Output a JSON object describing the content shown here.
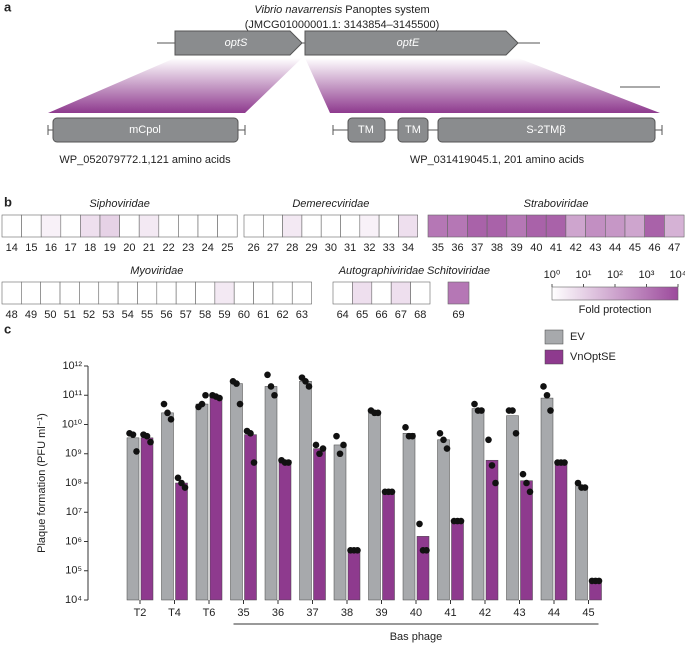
{
  "panel_a": {
    "panel_label": "a",
    "title_species": "Vibrio navarrensis",
    "title_rest": "Panoptes system",
    "accession": "(JMCG01000001.1: 3143854–3145500)",
    "genes": [
      "optS",
      "optE"
    ],
    "left_domains": [
      "mCpol"
    ],
    "right_domains": [
      "TM",
      "TM",
      "S-2TMβ"
    ],
    "left_caption": "WP_052079772.1,121 amino acids",
    "right_caption": "WP_031419045.1, 201 amino acids"
  },
  "chart_data": [
    {
      "type": "heatmap",
      "panel_label": "b",
      "groups": [
        {
          "name": "Siphoviridae",
          "categories": [
            "14",
            "15",
            "16",
            "17",
            "18",
            "19",
            "20",
            "21",
            "22",
            "23",
            "24",
            "25"
          ],
          "values": [
            1,
            1,
            2,
            1,
            5,
            10,
            1,
            3,
            1,
            1,
            1,
            1
          ]
        },
        {
          "name": "Demerecviridae",
          "categories": [
            "26",
            "27",
            "28",
            "29",
            "30",
            "31",
            "32",
            "33",
            "34"
          ],
          "values": [
            1,
            1,
            3,
            1,
            1,
            1,
            2,
            1,
            5
          ]
        },
        {
          "name": "Straboviridae",
          "categories": [
            "35",
            "36",
            "37",
            "38",
            "39",
            "40",
            "41",
            "42",
            "43",
            "44",
            "45",
            "46",
            "47"
          ],
          "values": [
            1000,
            1000,
            3000,
            3000,
            1000,
            3000,
            3000,
            100,
            300,
            200,
            100,
            3000,
            50
          ]
        },
        {
          "name": "Myoviridae",
          "categories": [
            "48",
            "49",
            "50",
            "51",
            "52",
            "53",
            "54",
            "55",
            "56",
            "57",
            "58",
            "59",
            "60",
            "61",
            "62",
            "63"
          ],
          "values": [
            1,
            1,
            1,
            1,
            1,
            1,
            1,
            1,
            1,
            1,
            1,
            3,
            1,
            1,
            1,
            1
          ]
        },
        {
          "name": "Autographiviridae",
          "categories": [
            "64",
            "65",
            "66",
            "67",
            "68"
          ],
          "values": [
            1,
            5,
            1,
            5,
            1
          ]
        },
        {
          "name": "Schitoviridae",
          "categories": [
            "69"
          ],
          "values": [
            1000
          ]
        }
      ],
      "colorbar": {
        "label": "Fold protection",
        "log": true,
        "lim": [
          1,
          10000
        ],
        "color": "#9c4a9c",
        "ticks": [
          {
            "value": 1,
            "label": "10⁰"
          },
          {
            "value": 10,
            "label": "10¹"
          },
          {
            "value": 100,
            "label": "10²"
          },
          {
            "value": 1000,
            "label": "10³"
          },
          {
            "value": 10000,
            "label": "10⁴"
          }
        ]
      }
    },
    {
      "type": "bar",
      "panel_label": "c",
      "ylabel": "Plaque formation (PFU ml⁻¹)",
      "log_y": true,
      "ylim": [
        10000.0,
        1000000000000.0
      ],
      "yticks": [
        {
          "value": 10000.0,
          "label": "10⁴"
        },
        {
          "value": 100000.0,
          "label": "10⁵"
        },
        {
          "value": 1000000.0,
          "label": "10⁶"
        },
        {
          "value": 10000000.0,
          "label": "10⁷"
        },
        {
          "value": 100000000.0,
          "label": "10⁸"
        },
        {
          "value": 1000000000.0,
          "label": "10⁹"
        },
        {
          "value": 10000000000.0,
          "label": "10¹⁰"
        },
        {
          "value": 100000000000.0,
          "label": "10¹¹"
        },
        {
          "value": 1000000000000.0,
          "label": "10¹²"
        }
      ],
      "categories": [
        "T2",
        "T4",
        "T6",
        "35",
        "36",
        "37",
        "38",
        "39",
        "40",
        "41",
        "42",
        "43",
        "44",
        "45"
      ],
      "x_group_label": "Bas phage",
      "series": [
        {
          "name": "EV",
          "color": "#a7a9ac",
          "values": [
            3500000000.0,
            25000000000.0,
            50000000000.0,
            250000000000.0,
            200000000000.0,
            300000000000.0,
            2000000000.0,
            25000000000.0,
            5000000000.0,
            3000000000.0,
            35000000000.0,
            20000000000.0,
            80000000000.0,
            80000000.0
          ],
          "points": [
            [
              5000000000.0,
              4500000000.0,
              1200000000.0
            ],
            [
              50000000000.0,
              25000000000.0,
              15000000000.0
            ],
            [
              40000000000.0,
              50000000000.0,
              100000000000.0
            ],
            [
              300000000000.0,
              250000000000.0,
              50000000000.0
            ],
            [
              500000000000.0,
              200000000000.0,
              100000000000.0
            ],
            [
              400000000000.0,
              300000000000.0,
              200000000000.0
            ],
            [
              4000000000.0,
              1000000000.0,
              2000000000.0
            ],
            [
              30000000000.0,
              25000000000.0,
              25000000000.0
            ],
            [
              8000000000.0,
              4000000000.0,
              4000000000.0
            ],
            [
              5000000000.0,
              3000000000.0,
              1500000000.0
            ],
            [
              50000000000.0,
              30000000000.0,
              30000000000.0
            ],
            [
              30000000000.0,
              30000000000.0,
              5000000000.0
            ],
            [
              200000000000.0,
              100000000000.0,
              30000000000.0
            ],
            [
              100000000.0,
              70000000.0,
              70000000.0
            ]
          ]
        },
        {
          "name": "VnOptSE",
          "color": "#8e3a8e",
          "values": [
            3500000000.0,
            100000000.0,
            90000000000.0,
            4500000000.0,
            600000000.0,
            1500000000.0,
            500000.0,
            50000000.0,
            1500000.0,
            5000000.0,
            600000000.0,
            120000000.0,
            500000000.0,
            45000.0
          ],
          "points": [
            [
              4500000000.0,
              4000000000.0,
              2500000000.0
            ],
            [
              150000000.0,
              100000000.0,
              70000000.0
            ],
            [
              100000000000.0,
              90000000000.0,
              80000000000.0
            ],
            [
              6000000000.0,
              5000000000.0,
              500000000.0
            ],
            [
              600000000.0,
              500000000.0,
              500000000.0
            ],
            [
              2000000000.0,
              1000000000.0,
              1500000000.0
            ],
            [
              500000.0,
              500000.0,
              500000.0
            ],
            [
              50000000.0,
              50000000.0,
              50000000.0
            ],
            [
              4000000.0,
              500000.0,
              500000.0
            ],
            [
              5000000.0,
              5000000.0,
              5000000.0
            ],
            [
              3000000000.0,
              400000000.0,
              100000000.0
            ],
            [
              200000000.0,
              100000000.0,
              50000000.0
            ],
            [
              500000000.0,
              500000000.0,
              500000000.0
            ],
            [
              45000.0,
              45000.0,
              45000.0
            ]
          ]
        }
      ]
    }
  ]
}
